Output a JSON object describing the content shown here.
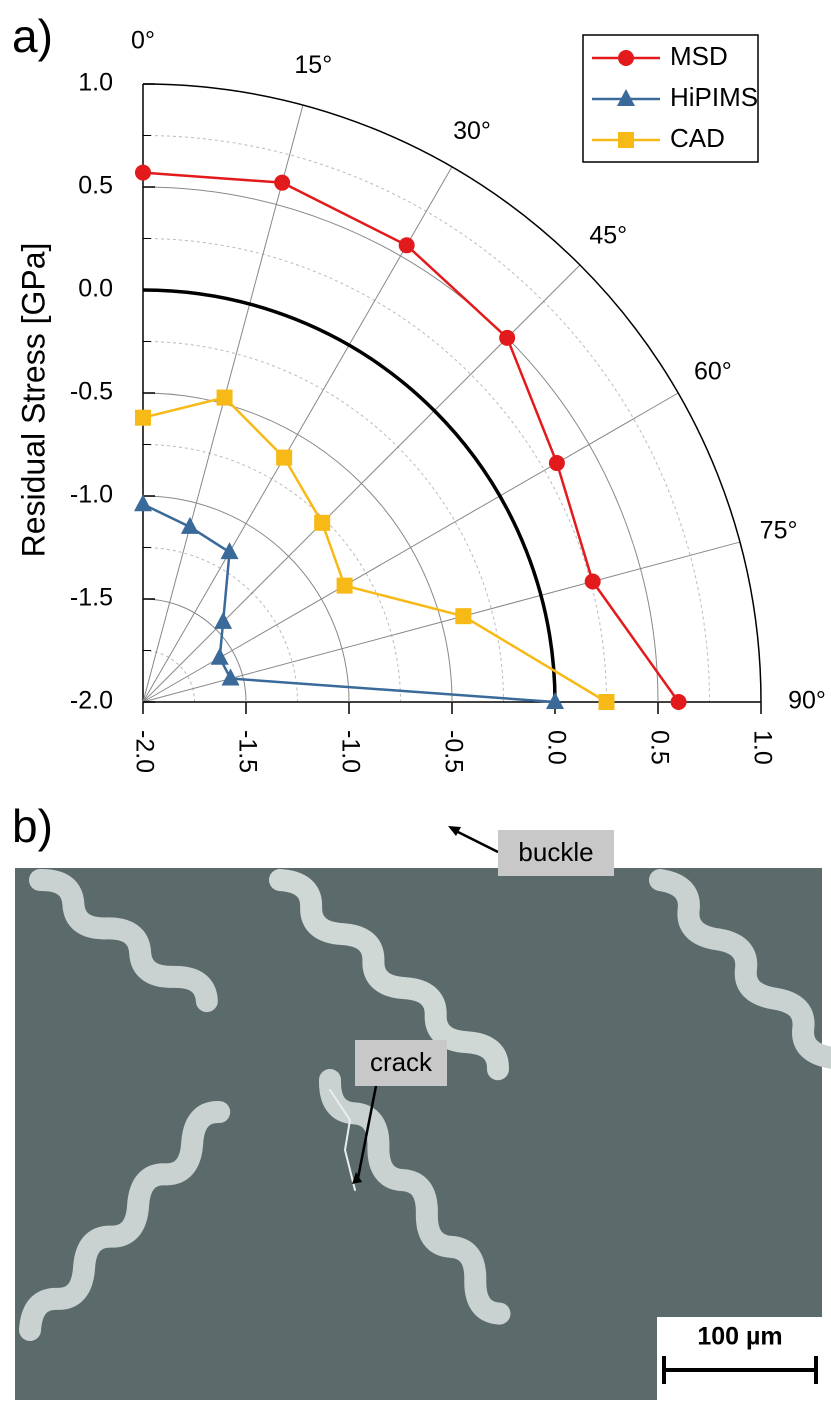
{
  "chart_data": {
    "type": "polar",
    "ylabel": "Residual Stress [GPa]",
    "x": [
      0,
      15,
      30,
      45,
      60,
      75,
      90
    ],
    "xticks": [
      {
        "value": 0,
        "label": "0°"
      },
      {
        "value": 15,
        "label": "15°"
      },
      {
        "value": 30,
        "label": "30°"
      },
      {
        "value": 45,
        "label": "45°"
      },
      {
        "value": 60,
        "label": "60°"
      },
      {
        "value": 75,
        "label": "75°"
      },
      {
        "value": 90,
        "label": "90°"
      }
    ],
    "xlim": [
      0,
      90
    ],
    "ylim": [
      -2.0,
      1.0
    ],
    "yticks": [
      {
        "value": -2.0,
        "label": "-2.0"
      },
      {
        "value": -1.5,
        "label": "-1.5"
      },
      {
        "value": -1.0,
        "label": "-1.0"
      },
      {
        "value": -0.5,
        "label": "-0.5"
      },
      {
        "value": 0.0,
        "label": "0.0"
      },
      {
        "value": 0.5,
        "label": "0.5"
      },
      {
        "value": 1.0,
        "label": "1.0"
      }
    ],
    "zero_line": 0,
    "grid": true,
    "legend": "upper right",
    "series": [
      {
        "name": "MSD",
        "color": "#e31a1c",
        "marker": "circle",
        "values": [
          0.57,
          0.61,
          0.56,
          0.5,
          0.32,
          0.26,
          0.6
        ]
      },
      {
        "name": "HiPIMS",
        "color": "#3a6a99",
        "marker": "triangle",
        "values": [
          -1.04,
          -1.12,
          -1.16,
          -1.45,
          -1.57,
          -1.56,
          0.0
        ]
      },
      {
        "name": "CAD",
        "color": "#f7b916",
        "marker": "square",
        "values": [
          -0.62,
          -0.47,
          -0.63,
          -0.77,
          -0.87,
          -0.39,
          0.25
        ]
      }
    ]
  },
  "panel_labels": [
    "a)",
    "b)"
  ],
  "image": {
    "annotations": [
      "buckle",
      "crack"
    ],
    "scale_bar": "100 µm"
  }
}
